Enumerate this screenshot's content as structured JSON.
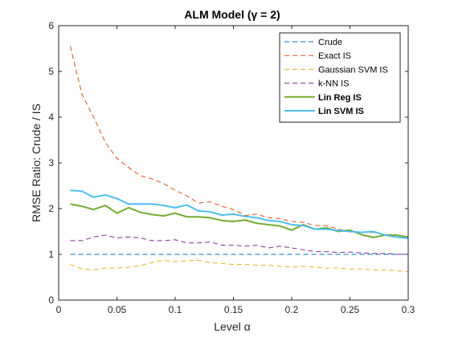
{
  "chart_data": {
    "type": "line",
    "title": "ALM Model (γ = 2)",
    "xlabel": "Level α",
    "ylabel": "RMSE Ratio: Crude / IS",
    "xlim": [
      0,
      0.3
    ],
    "ylim": [
      0,
      6
    ],
    "xticks": [
      "0",
      "0.05",
      "0.1",
      "0.15",
      "0.2",
      "0.25",
      "0.3"
    ],
    "yticks": [
      "0",
      "1",
      "2",
      "3",
      "4",
      "5",
      "6"
    ],
    "grid": false,
    "legend_position": "top-right",
    "x": [
      0.01,
      0.02,
      0.03,
      0.04,
      0.05,
      0.06,
      0.07,
      0.08,
      0.09,
      0.1,
      0.11,
      0.12,
      0.13,
      0.14,
      0.15,
      0.16,
      0.17,
      0.18,
      0.19,
      0.2,
      0.21,
      0.22,
      0.23,
      0.24,
      0.25,
      0.26,
      0.27,
      0.28,
      0.29,
      0.3
    ],
    "series": [
      {
        "name": "Crude",
        "color": "#0072BD",
        "style": "dashed",
        "width": 1,
        "values": [
          1,
          1,
          1,
          1,
          1,
          1,
          1,
          1,
          1,
          1,
          1,
          1,
          1,
          1,
          1,
          1,
          1,
          1,
          1,
          1,
          1,
          1,
          1,
          1,
          1,
          1,
          1,
          1,
          1,
          1
        ]
      },
      {
        "name": "Exact IS",
        "color": "#D95319",
        "style": "dashed",
        "width": 1,
        "values": [
          5.55,
          4.5,
          4.0,
          3.45,
          3.1,
          2.9,
          2.72,
          2.65,
          2.55,
          2.4,
          2.28,
          2.12,
          2.15,
          2.05,
          1.98,
          1.85,
          1.88,
          1.8,
          1.78,
          1.72,
          1.7,
          1.63,
          1.63,
          1.55,
          1.5,
          1.48,
          1.48,
          1.43,
          1.38,
          1.38
        ]
      },
      {
        "name": "Gaussian SVM IS",
        "color": "#EDB120",
        "style": "dashed",
        "width": 1,
        "values": [
          0.78,
          0.68,
          0.66,
          0.7,
          0.7,
          0.72,
          0.75,
          0.82,
          0.87,
          0.84,
          0.86,
          0.87,
          0.82,
          0.8,
          0.78,
          0.78,
          0.76,
          0.76,
          0.74,
          0.72,
          0.74,
          0.72,
          0.7,
          0.7,
          0.68,
          0.68,
          0.66,
          0.66,
          0.64,
          0.62
        ]
      },
      {
        "name": "k-NN IS",
        "color": "#7E2F8E",
        "style": "dashed",
        "width": 1,
        "values": [
          1.3,
          1.3,
          1.38,
          1.42,
          1.36,
          1.38,
          1.36,
          1.3,
          1.3,
          1.32,
          1.25,
          1.25,
          1.27,
          1.2,
          1.2,
          1.18,
          1.2,
          1.14,
          1.18,
          1.14,
          1.1,
          1.06,
          1.06,
          1.04,
          1.05,
          1.03,
          1.02,
          1.02,
          1.0,
          1.0
        ]
      },
      {
        "name": "Lin Reg IS",
        "color": "#77AC30",
        "style": "solid",
        "width": 2,
        "bold_label": true,
        "values": [
          2.1,
          2.05,
          1.98,
          2.07,
          1.9,
          2.02,
          1.92,
          1.87,
          1.84,
          1.9,
          1.82,
          1.82,
          1.8,
          1.74,
          1.72,
          1.75,
          1.68,
          1.65,
          1.62,
          1.53,
          1.65,
          1.55,
          1.58,
          1.5,
          1.53,
          1.43,
          1.37,
          1.42,
          1.42,
          1.38
        ]
      },
      {
        "name": "Lin SVM IS",
        "color": "#4DBEEE",
        "style": "solid",
        "width": 2,
        "bold_label": true,
        "values": [
          2.4,
          2.38,
          2.25,
          2.3,
          2.22,
          2.1,
          2.1,
          2.1,
          2.07,
          2.02,
          2.08,
          1.95,
          1.93,
          1.86,
          1.88,
          1.83,
          1.8,
          1.74,
          1.72,
          1.65,
          1.63,
          1.55,
          1.55,
          1.52,
          1.5,
          1.48,
          1.5,
          1.42,
          1.38,
          1.35
        ]
      }
    ]
  }
}
